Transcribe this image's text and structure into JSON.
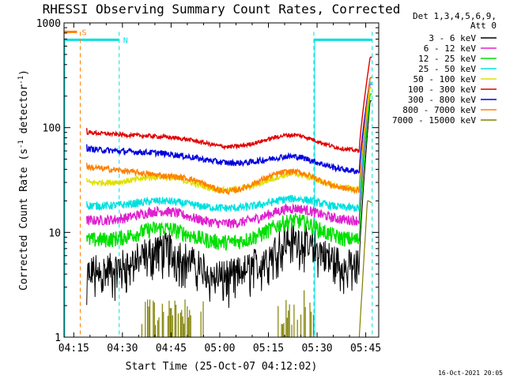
{
  "chart_data": {
    "type": "line",
    "title": "RHESSI Observing Summary Count Rates, Corrected",
    "xlabel": "Start Time (25-Oct-07 04:12:02)",
    "ylabel_main": "Corrected Count Rate (s",
    "ylabel_sup1": "-1",
    "ylabel_mid": " detector",
    "ylabel_sup2": "-1",
    "ylabel_end": ")",
    "yscale": "log",
    "ylim": [
      1,
      1000
    ],
    "xlim_minutes": [
      0,
      97
    ],
    "x_tick_labels": [
      "04:15",
      "04:30",
      "04:45",
      "05:00",
      "05:15",
      "05:30",
      "05:45"
    ],
    "x_tick_minutes": [
      3,
      18,
      33,
      48,
      63,
      78,
      93
    ],
    "y_tick_labels": [
      "1",
      "10",
      "100",
      "1000"
    ],
    "y_tick_values": [
      1,
      10,
      100,
      1000
    ],
    "legend": {
      "header": [
        "Det 1,3,4,5,6,9,",
        "Att 0"
      ],
      "placement": "right",
      "entries": [
        "3 - 6 keV",
        "6 - 12 keV",
        "12 - 25 keV",
        "25 - 50 keV",
        "50 - 100 keV",
        "100 - 300 keV",
        "300 - 800 keV",
        "800 - 7000 keV",
        "7000 - 15000 keV"
      ],
      "colors": [
        "#000000",
        "#e020d0",
        "#00e000",
        "#00e0e0",
        "#e0e000",
        "#e00000",
        "#0000e0",
        "#ff8000",
        "#808000"
      ]
    },
    "shading": {
      "saa_label": "S",
      "night_label": "N",
      "saa_color": "#ff8000",
      "night_color": "#00e0e0",
      "saa_end_minute": 5,
      "night_intervals_minutes": [
        [
          0,
          17
        ],
        [
          77,
          95
        ]
      ],
      "dashed_lines_minutes": [
        5,
        17,
        77,
        95
      ],
      "solid_lines_minutes": [
        0,
        77
      ]
    },
    "series_start_minute": 7,
    "series_end_minute": 95,
    "rise_minute": 91,
    "series": [
      {
        "name": "3 - 6 keV",
        "color": "#000000",
        "shape": "double",
        "start": 4.5,
        "hump1": 7.5,
        "min": 4,
        "hump2": 9.5,
        "end": 5,
        "peak": 180,
        "noise": 0.18
      },
      {
        "name": "6 - 12 keV",
        "color": "#e020d0",
        "shape": "double",
        "start": 13,
        "hump1": 16,
        "min": 12,
        "hump2": 17,
        "end": 13,
        "peak": 260,
        "noise": 0.05
      },
      {
        "name": "12 - 25 keV",
        "color": "#00e000",
        "shape": "double",
        "start": 8.5,
        "hump1": 11,
        "min": 8,
        "hump2": 13,
        "end": 8.5,
        "peak": 210,
        "noise": 0.08
      },
      {
        "name": "25 - 50 keV",
        "color": "#00e0e0",
        "shape": "double",
        "start": 18,
        "hump1": 20,
        "min": 17,
        "hump2": 21,
        "end": 17,
        "peak": 270,
        "noise": 0.04
      },
      {
        "name": "50 - 100 keV",
        "color": "#e0e000",
        "shape": "double",
        "start": 30,
        "hump1": 34,
        "min": 25,
        "hump2": 36,
        "end": 26,
        "peak": 240,
        "noise": 0.03
      },
      {
        "name": "100 - 300 keV",
        "color": "#e00000",
        "shape": "double",
        "start": 90,
        "hump1": 82,
        "min": 65,
        "hump2": 85,
        "end": 60,
        "peak": 470,
        "noise": 0.02
      },
      {
        "name": "300 - 800 keV",
        "color": "#0000e0",
        "shape": "double",
        "start": 63,
        "hump1": 57,
        "min": 46,
        "hump2": 53,
        "end": 38,
        "peak": 300,
        "noise": 0.03
      },
      {
        "name": "800 - 7000 keV",
        "color": "#ff8000",
        "shape": "double",
        "start": 42,
        "hump1": 35,
        "min": 24,
        "hump2": 38,
        "end": 25,
        "peak": 300,
        "noise": 0.03
      },
      {
        "name": "7000 - 15000 keV",
        "color": "#808000",
        "shape": "spiky",
        "start": 1,
        "hump1": 1,
        "min": 1,
        "hump2": 1,
        "end": 1,
        "peak": 20,
        "noise": 0
      }
    ]
  },
  "footer": {
    "timestamp": "16-Oct-2021 20:05"
  }
}
